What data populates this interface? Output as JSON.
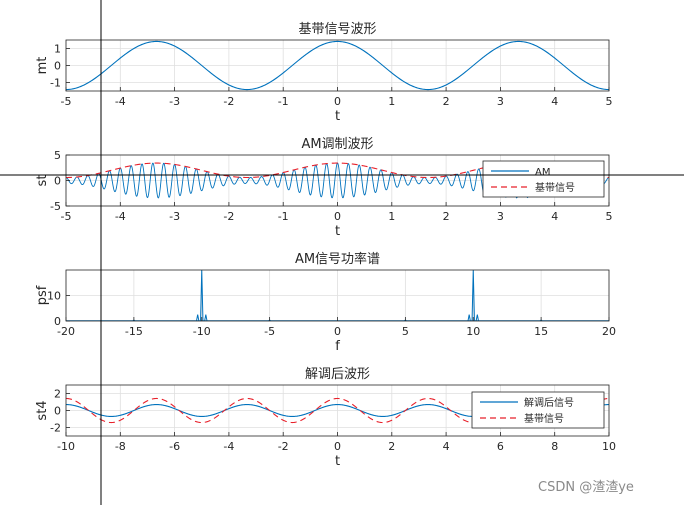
{
  "watermark": "CSDN @渣渣ye",
  "colors": {
    "blue": "#0072BD",
    "red": "#E8202A",
    "grid": "#DFDFDF",
    "axis": "#262626"
  },
  "chart_data": [
    {
      "type": "line",
      "title": "基带信号波形",
      "xlabel": "t",
      "ylabel": "mt",
      "xlim": [
        -5,
        5
      ],
      "ylim": [
        -1.5,
        1.5
      ],
      "xticks": [
        -5,
        -4,
        -3,
        -2,
        -1,
        0,
        1,
        2,
        3,
        4,
        5
      ],
      "yticks": [
        -1,
        0,
        1
      ],
      "grid": true,
      "series": [
        {
          "kind": "cos",
          "amp": 1.414,
          "freq": 0.3,
          "offset": 0,
          "color": "blue",
          "dash": false
        }
      ]
    },
    {
      "type": "line",
      "title": "AM调制波形",
      "xlabel": "t",
      "ylabel": "st",
      "xlim": [
        -5,
        5
      ],
      "ylim": [
        -5,
        5
      ],
      "xticks": [
        -5,
        -4,
        -3,
        -2,
        -1,
        0,
        1,
        2,
        3,
        4,
        5
      ],
      "yticks": [
        -5,
        0,
        5
      ],
      "grid": true,
      "legend_position": "top-right",
      "series": [
        {
          "name": "AM",
          "kind": "am",
          "base": 2,
          "amp": 1.414,
          "freq": 0.3,
          "carrier": 5,
          "color": "blue",
          "dash": false
        },
        {
          "name": "基带信号",
          "kind": "cos",
          "amp": 1.414,
          "freq": 0.3,
          "offset": 2,
          "color": "red",
          "dash": true
        }
      ]
    },
    {
      "type": "line",
      "title": "AM信号功率谱",
      "xlabel": "f",
      "ylabel": "psf",
      "xlim": [
        -20,
        20
      ],
      "ylim": [
        0,
        20
      ],
      "xticks": [
        -20,
        -15,
        -10,
        -5,
        0,
        5,
        10,
        15,
        20
      ],
      "yticks": [
        0,
        10
      ],
      "grid": true,
      "peaks": [
        {
          "f": -10,
          "v": 20
        },
        {
          "f": 10,
          "v": 20
        },
        {
          "f": -10.3,
          "v": 2.5
        },
        {
          "f": -9.7,
          "v": 2.5
        },
        {
          "f": 9.7,
          "v": 2.5
        },
        {
          "f": 10.3,
          "v": 2.5
        },
        {
          "f": -5,
          "v": 0.4
        },
        {
          "f": 5,
          "v": 0.4
        },
        {
          "f": -15,
          "v": 0.4
        },
        {
          "f": 15,
          "v": 0.4
        }
      ]
    },
    {
      "type": "line",
      "title": "解调后波形",
      "xlabel": "t",
      "ylabel": "st4",
      "xlim": [
        -10,
        10
      ],
      "ylim": [
        -3,
        3
      ],
      "xticks": [
        -10,
        -8,
        -6,
        -4,
        -2,
        0,
        2,
        4,
        6,
        8,
        10
      ],
      "yticks": [
        -2,
        0,
        2
      ],
      "grid": true,
      "legend_position": "top-right",
      "series": [
        {
          "name": "解调后信号",
          "kind": "cos",
          "amp": 0.7,
          "freq": 0.3,
          "offset": 0,
          "color": "blue",
          "dash": false
        },
        {
          "name": "基带信号",
          "kind": "cos",
          "amp": 1.414,
          "freq": 0.3,
          "offset": 0,
          "color": "red",
          "dash": true
        }
      ]
    }
  ]
}
